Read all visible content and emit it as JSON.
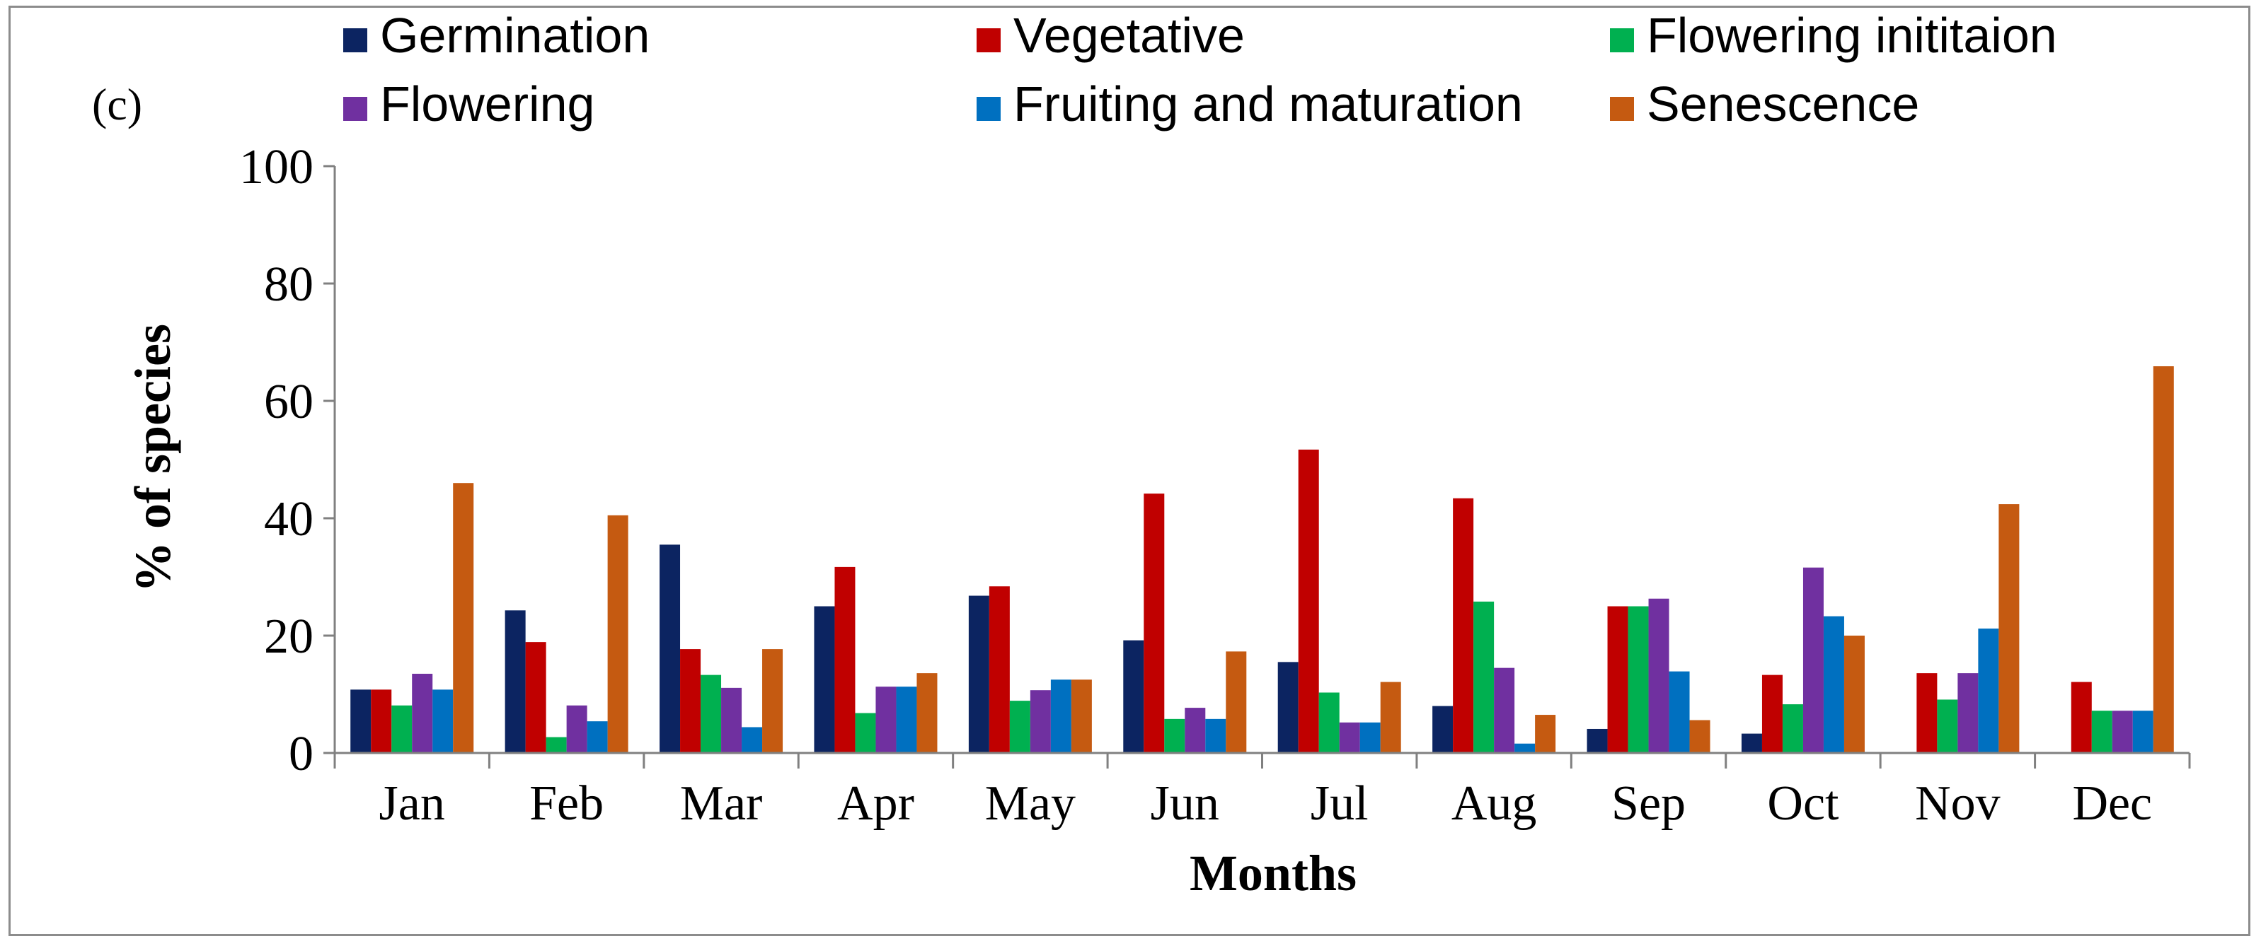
{
  "chart_data": {
    "type": "bar",
    "panel_label": "(c)",
    "title": "",
    "xlabel": "Months",
    "ylabel": "% of species",
    "ylim": [
      0,
      100
    ],
    "yticks": [
      "0",
      "20",
      "40",
      "60",
      "80",
      "100"
    ],
    "ytick_values": [
      0,
      20,
      40,
      60,
      80,
      100
    ],
    "grid": false,
    "legend_position": "top",
    "categories": [
      "Jan",
      "Feb",
      "Mar",
      "Apr",
      "May",
      "Jun",
      "Jul",
      "Aug",
      "Sep",
      "Oct",
      "Nov",
      "Dec"
    ],
    "series": [
      {
        "name": "Germination",
        "color": "#0c2461",
        "values": [
          10.8,
          24.3,
          35.5,
          25.0,
          26.8,
          19.2,
          15.5,
          8.0,
          4.1,
          3.3,
          0,
          0
        ]
      },
      {
        "name": "Vegetative",
        "color": "#c00000",
        "values": [
          10.8,
          18.9,
          17.7,
          31.7,
          28.4,
          44.2,
          51.7,
          43.4,
          25.0,
          13.3,
          13.6,
          12.1
        ]
      },
      {
        "name": "Flowering inititaion",
        "color": "#00b050",
        "values": [
          8.1,
          2.7,
          13.3,
          6.8,
          8.9,
          5.8,
          10.3,
          25.8,
          25.0,
          8.3,
          9.1,
          7.2
        ]
      },
      {
        "name": "Flowering",
        "color": "#7030a0",
        "values": [
          13.5,
          8.1,
          11.1,
          11.3,
          10.7,
          7.7,
          5.2,
          14.5,
          26.3,
          31.6,
          13.6,
          7.2
        ]
      },
      {
        "name": "Fruiting and maturation",
        "color": "#0070c0",
        "values": [
          10.8,
          5.4,
          4.4,
          11.3,
          12.5,
          5.8,
          5.2,
          1.6,
          13.9,
          23.3,
          21.2,
          7.2
        ]
      },
      {
        "name": "Senescence",
        "color": "#c55a11",
        "values": [
          46.0,
          40.5,
          17.7,
          13.6,
          12.5,
          17.3,
          12.1,
          6.5,
          5.6,
          20.0,
          42.4,
          65.9
        ]
      }
    ]
  }
}
